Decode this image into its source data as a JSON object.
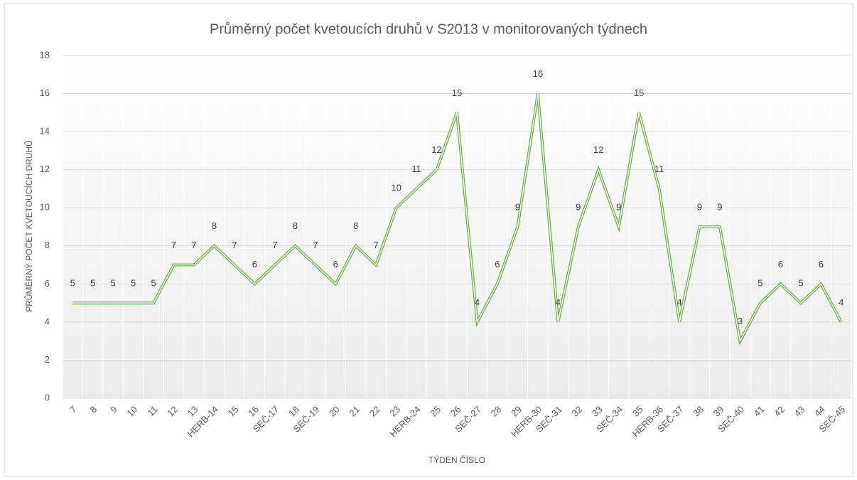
{
  "chart_data": {
    "type": "line",
    "title": "Průměrný počet kvetoucích druhů v S2013 v monitorovaných týdnech",
    "x_label": "TÝDEN ČÍSLO",
    "y_label": "PRŮMĚRNÝ POČET KVETOUCÍCH DRUHŮ",
    "categories": [
      "7",
      "8",
      "9",
      "10",
      "11",
      "12",
      "13",
      "HERB-14",
      "15",
      "16",
      "SEČ-17",
      "18",
      "SEČ-19",
      "20",
      "21",
      "22",
      "23",
      "HERB-24",
      "25",
      "26",
      "SEČ-27",
      "28",
      "29",
      "HERB-30",
      "SEČ-31",
      "32",
      "33",
      "SEČ-34",
      "35",
      "HERB-36",
      "SEČ-37",
      "38",
      "39",
      "SEČ-40",
      "41",
      "42",
      "43",
      "44",
      "SEČ-45"
    ],
    "values": [
      5,
      5,
      5,
      5,
      5,
      7,
      7,
      8,
      7,
      6,
      7,
      8,
      7,
      6,
      8,
      7,
      10,
      11,
      12,
      15,
      4,
      6,
      9,
      16,
      4,
      9,
      12,
      9,
      15,
      11,
      4,
      9,
      9,
      3,
      5,
      6,
      5,
      6,
      4
    ],
    "color": "#70ad47",
    "ylim": [
      0,
      18
    ],
    "yticks": [
      0,
      2,
      4,
      6,
      8,
      10,
      12,
      14,
      16,
      18
    ],
    "grid": true
  }
}
